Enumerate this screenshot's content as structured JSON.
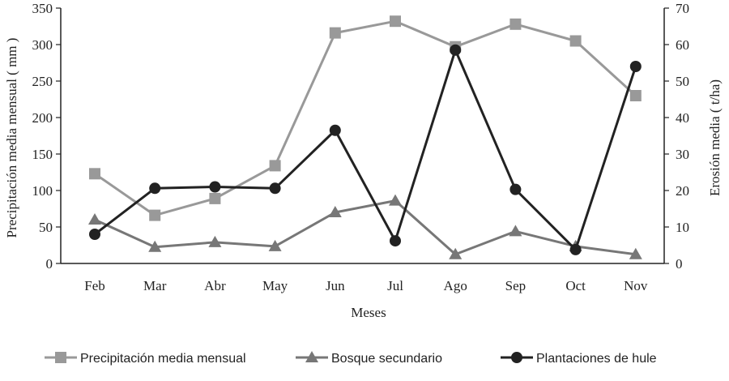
{
  "chart_data": {
    "type": "line",
    "categories": [
      "Feb",
      "Mar",
      "Abr",
      "May",
      "Jun",
      "Jul",
      "Ago",
      "Sep",
      "Oct",
      "Nov"
    ],
    "xlabel": "Meses",
    "ylabel_left": "Precipitación media mensual ( mm )",
    "ylabel_right": "Erosión media ( t/ha)",
    "ylim_left": [
      0,
      350
    ],
    "ylim_right": [
      0,
      70
    ],
    "yticks_left": [
      "0",
      "50",
      "100",
      "150",
      "200",
      "250",
      "300",
      "350"
    ],
    "yticks_right": [
      "0",
      "10",
      "20",
      "30",
      "40",
      "50",
      "60",
      "70"
    ],
    "grid": false,
    "legend_position": "bottom",
    "series": [
      {
        "name": "Precipitación media mensual",
        "axis": "left",
        "marker": "square",
        "color": "#999999",
        "values": [
          123,
          66,
          89,
          134,
          316,
          332,
          297,
          328,
          305,
          230
        ]
      },
      {
        "name": "Bosque secundario",
        "axis": "right",
        "marker": "triangle",
        "color": "#777777",
        "values": [
          12,
          4.5,
          5.8,
          4.7,
          14,
          17.2,
          2.5,
          8.8,
          4.7,
          2.5
        ]
      },
      {
        "name": "Plantaciones de hule",
        "axis": "right",
        "marker": "circle",
        "color": "#222222",
        "values": [
          8,
          20.6,
          21,
          20.6,
          36.5,
          6.2,
          58.5,
          20.3,
          3.8,
          54
        ]
      }
    ]
  }
}
